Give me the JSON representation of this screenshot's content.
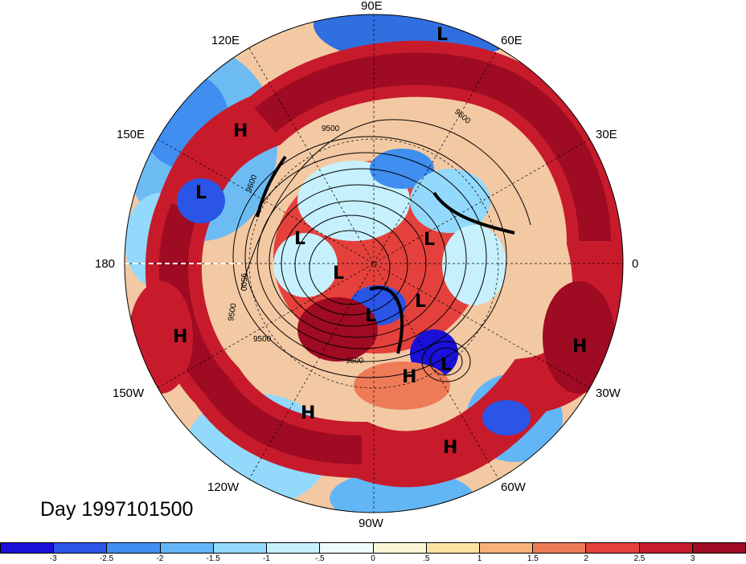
{
  "title": "Day 1997101500",
  "longitude_labels": [
    {
      "id": "lon-90e",
      "text": "90E"
    },
    {
      "id": "lon-60e",
      "text": "60E"
    },
    {
      "id": "lon-30e",
      "text": "30E"
    },
    {
      "id": "lon-0",
      "text": "0"
    },
    {
      "id": "lon-30w",
      "text": "30W"
    },
    {
      "id": "lon-60w",
      "text": "60W"
    },
    {
      "id": "lon-90w",
      "text": "90W"
    },
    {
      "id": "lon-120w",
      "text": "120W"
    },
    {
      "id": "lon-150w",
      "text": "150W"
    },
    {
      "id": "lon-180",
      "text": "180"
    },
    {
      "id": "lon-150e",
      "text": "150E"
    },
    {
      "id": "lon-120e",
      "text": "120E"
    }
  ],
  "pressure_centers": [
    "L",
    "H",
    "L",
    "L",
    "L",
    "L",
    "L",
    "L",
    "L",
    "H",
    "H",
    "H",
    "H",
    "H"
  ],
  "contour_labels": [
    "9500",
    "9600",
    "9500",
    "9500",
    "9600",
    "9500",
    "9600"
  ],
  "colorbar": {
    "colors": [
      "#1a10d8",
      "#2a55e6",
      "#3f8ef0",
      "#62b6f6",
      "#93d9fb",
      "#c6f0fc",
      "#ecfbfd",
      "#fdf6d6",
      "#fbe4a3",
      "#f7b27a",
      "#ee7b58",
      "#e4413c",
      "#c71b2c",
      "#9e0b22"
    ],
    "ticks": [
      "-3",
      "-2.5",
      "-2",
      "-1.5",
      "-1",
      "-.5",
      "0",
      ".5",
      "1",
      "1.5",
      "2",
      "2.5",
      "3"
    ]
  }
}
